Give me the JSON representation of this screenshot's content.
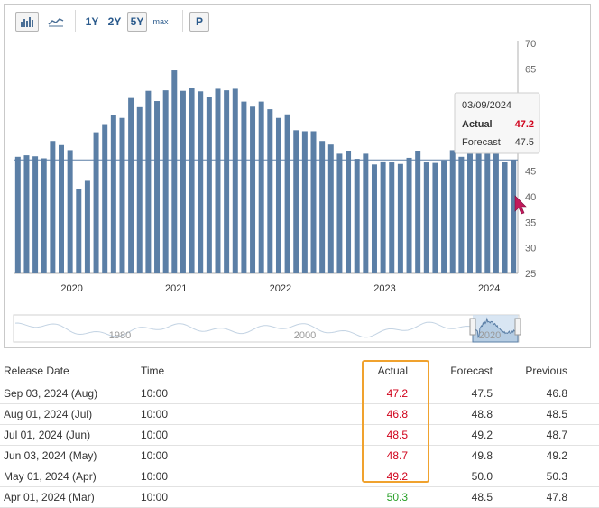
{
  "toolbar": {
    "bar_icon": "bar-chart-icon",
    "line_icon": "line-chart-icon",
    "ranges": [
      "1Y",
      "2Y",
      "5Y",
      "max"
    ],
    "active_range": "5Y",
    "print_label": "P"
  },
  "tooltip": {
    "date": "03/09/2024",
    "actual_label": "Actual",
    "actual_value": "47.2",
    "forecast_label": "Forecast",
    "forecast_value": "47.5"
  },
  "colors": {
    "bar": "#5b7fa6",
    "navigator_fill": "#c9dcee",
    "actual_red": "#d0021b",
    "actual_green": "#28a028",
    "highlight": "#f0a22e"
  },
  "chart_data": {
    "type": "bar",
    "title": "",
    "xlabel": "",
    "ylabel": "",
    "ylim": [
      25,
      70
    ],
    "yticks": [
      25,
      30,
      35,
      40,
      45,
      50,
      55,
      60,
      65,
      70
    ],
    "ytick_labels": [
      "25",
      "30",
      "35",
      "40",
      "45",
      "",
      "",
      "",
      "65",
      "70"
    ],
    "xtick_labels": [
      "2020",
      "2021",
      "2022",
      "2023",
      "2024"
    ],
    "x_start": "2019-09",
    "x_end": "2024-08",
    "reference_line": 47.2,
    "series": [
      {
        "values": [
          47.8,
          48.1,
          47.9,
          47.5,
          50.9,
          50.1,
          49.1,
          41.5,
          43.1,
          52.6,
          54.2,
          56.0,
          55.4,
          59.3,
          57.5,
          60.7,
          58.7,
          60.8,
          64.7,
          60.7,
          61.2,
          60.6,
          59.5,
          61.1,
          60.8,
          61.1,
          58.6,
          57.6,
          58.6,
          57.1,
          55.4,
          56.1,
          53.0,
          52.8,
          52.8,
          50.9,
          50.2,
          48.4,
          49.0,
          47.4,
          48.4,
          46.3,
          46.9,
          46.7,
          46.4,
          47.6,
          49.0,
          46.7,
          46.6,
          47.1,
          49.1,
          47.8,
          50.3,
          49.2,
          48.7,
          48.5,
          46.8,
          47.2
        ]
      }
    ],
    "navigator": {
      "labels": [
        "1980",
        "2000",
        "2020"
      ]
    }
  },
  "table": {
    "headers": [
      "Release Date",
      "Time",
      "Actual",
      "Forecast",
      "Previous"
    ],
    "rows": [
      {
        "date": "Sep 03, 2024 (Aug)",
        "time": "10:00",
        "actual": "47.2",
        "forecast": "47.5",
        "previous": "46.8",
        "actual_color": "red"
      },
      {
        "date": "Aug 01, 2024 (Jul)",
        "time": "10:00",
        "actual": "46.8",
        "forecast": "48.8",
        "previous": "48.5",
        "actual_color": "red"
      },
      {
        "date": "Jul 01, 2024 (Jun)",
        "time": "10:00",
        "actual": "48.5",
        "forecast": "49.2",
        "previous": "48.7",
        "actual_color": "red"
      },
      {
        "date": "Jun 03, 2024 (May)",
        "time": "10:00",
        "actual": "48.7",
        "forecast": "49.8",
        "previous": "49.2",
        "actual_color": "red"
      },
      {
        "date": "May 01, 2024 (Apr)",
        "time": "10:00",
        "actual": "49.2",
        "forecast": "50.0",
        "previous": "50.3",
        "actual_color": "red"
      },
      {
        "date": "Apr 01, 2024 (Mar)",
        "time": "10:00",
        "actual": "50.3",
        "forecast": "48.5",
        "previous": "47.8",
        "actual_color": "green"
      }
    ]
  }
}
